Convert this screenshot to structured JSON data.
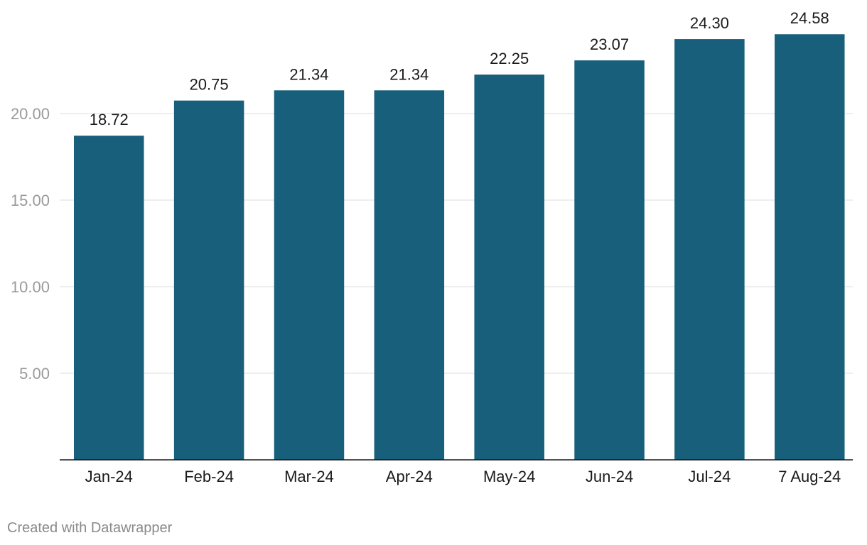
{
  "chart_data": {
    "type": "bar",
    "categories": [
      "Jan-24",
      "Feb-24",
      "Mar-24",
      "Apr-24",
      "May-24",
      "Jun-24",
      "Jul-24",
      "7 Aug-24"
    ],
    "values": [
      18.72,
      20.75,
      21.34,
      21.34,
      22.25,
      23.07,
      24.3,
      24.58
    ],
    "value_labels": [
      "18.72",
      "20.75",
      "21.34",
      "21.34",
      "22.25",
      "23.07",
      "24.30",
      "24.58"
    ],
    "yticks": [
      5,
      10,
      15,
      20
    ],
    "ytick_labels": [
      "5.00",
      "10.00",
      "15.00",
      "20.00"
    ],
    "ylim": [
      0,
      25
    ],
    "grid": true,
    "legend": "none",
    "bar_color": "#175f7a",
    "title": "",
    "xlabel": "",
    "ylabel": ""
  },
  "footer": {
    "credit": "Created with Datawrapper"
  }
}
